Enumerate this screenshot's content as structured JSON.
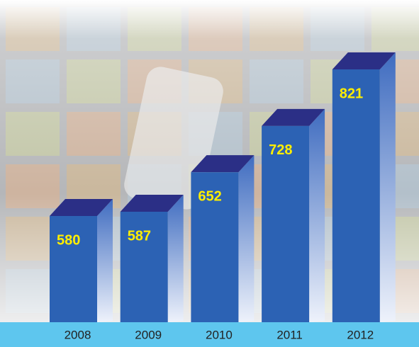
{
  "chart_data": {
    "type": "bar3d",
    "categories": [
      "2008",
      "2009",
      "2010",
      "2011",
      "2012"
    ],
    "values": [
      580,
      587,
      652,
      728,
      821
    ],
    "color": "#2c62b4",
    "top_color": "#2b2f86",
    "label_color": "#ffee00"
  }
}
